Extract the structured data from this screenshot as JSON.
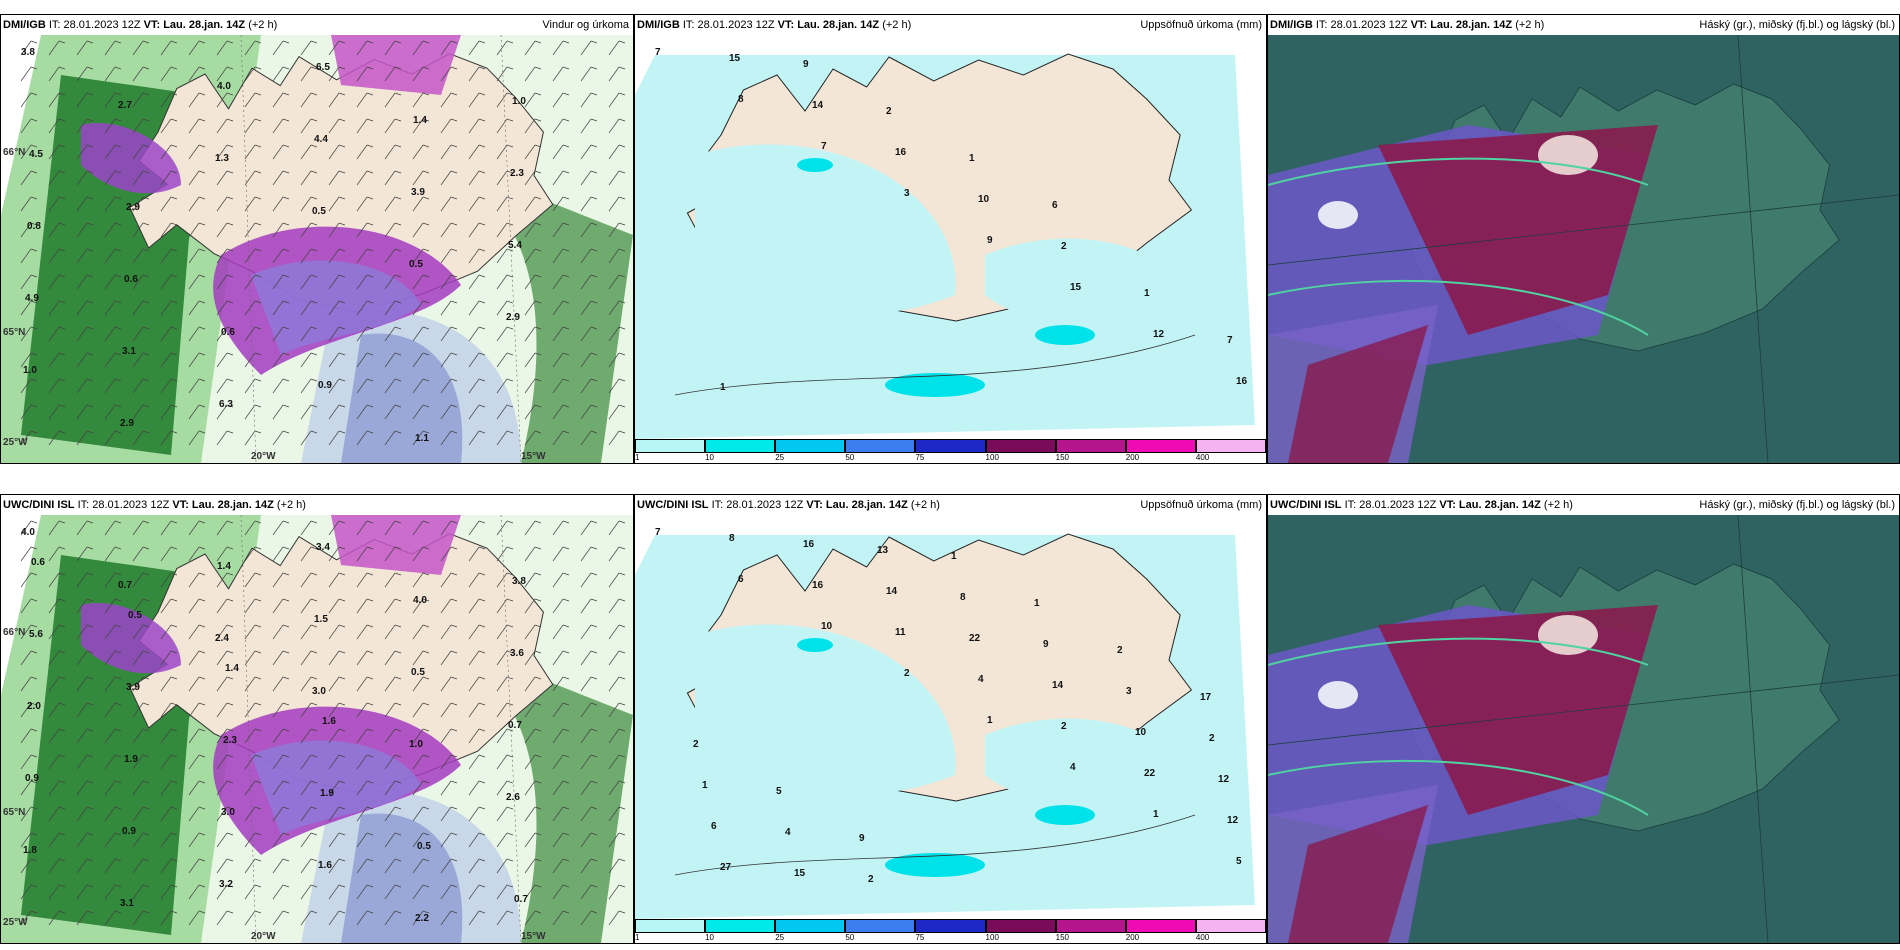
{
  "panels": [
    {
      "source": "DMI/IGB",
      "it": "IT: 28.01.2023 12Z",
      "vt_label": "VT:",
      "vt": "Lau. 28.jan. 14Z",
      "offset": "(+2 h)",
      "title": "Vindur og úrkoma"
    },
    {
      "source": "DMI/IGB",
      "it": "IT: 28.01.2023 12Z",
      "vt_label": "VT:",
      "vt": "Lau. 28.jan. 14Z",
      "offset": "(+2 h)",
      "title": "Uppsöfnuð úrkoma (mm)"
    },
    {
      "source": "DMI/IGB",
      "it": "IT: 28.01.2023 12Z",
      "vt_label": "VT:",
      "vt": "Lau. 28.jan. 14Z",
      "offset": "(+2 h)",
      "title": "Háský (gr.), miðský (fj.bl.) og lágský (bl.)"
    },
    {
      "source": "UWC/DINI ISL",
      "it": "IT: 28.01.2023 12Z",
      "vt_label": "VT:",
      "vt": "Lau. 28.jan. 14Z",
      "offset": "(+2 h)",
      "title": "Vindur og úrkoma"
    },
    {
      "source": "UWC/DINI ISL",
      "it": "IT: 28.01.2023 12Z",
      "vt_label": "VT:",
      "vt": "Lau. 28.jan. 14Z",
      "offset": "(+2 h)",
      "title": "Uppsöfnuð úrkoma (mm)"
    },
    {
      "source": "UWC/DINI ISL",
      "it": "IT: 28.01.2023 12Z",
      "vt_label": "VT:",
      "vt": "Lau. 28.jan. 14Z",
      "offset": "(+2 h)",
      "title": "Háský (gr.), miðský (fj.bl.) og lágský (bl.)"
    }
  ],
  "colorbar": {
    "ticks": [
      "1",
      "10",
      "25",
      "50",
      "75",
      "100",
      "150",
      "200",
      "400"
    ],
    "colors": [
      "#b8f6f6",
      "#00eaea",
      "#00c8f0",
      "#3a7ef0",
      "#1e28c8",
      "#7a0a5a",
      "#b4148c",
      "#f00ab4",
      "#f5b4f0"
    ]
  },
  "precip_labels_top": [
    "7",
    "8",
    "7",
    "3",
    "9",
    "15",
    "12",
    "16",
    "15",
    "14",
    "16",
    "10",
    "2",
    "1",
    "7",
    "1",
    "9",
    "2",
    "1",
    "6"
  ],
  "precip_labels_bottom": [
    "7",
    "6",
    "10",
    "2",
    "1",
    "4",
    "1",
    "5",
    "8",
    "16",
    "11",
    "4",
    "2",
    "22",
    "12",
    "27",
    "16",
    "14",
    "22",
    "14",
    "10",
    "12",
    "6",
    "15",
    "13",
    "8",
    "9",
    "3",
    "2",
    "1",
    "4",
    "2",
    "1",
    "1",
    "2",
    "17",
    "2",
    "5",
    "9"
  ],
  "wind_labels_top": [
    "3.8",
    "2.7",
    "1.3",
    "0.5",
    "0.5",
    "2.9",
    "1.0",
    "2.9",
    "4.0",
    "4.4",
    "3.9",
    "5.4",
    "4.9",
    "3.1",
    "6.3",
    "6.5",
    "1.4",
    "2.3",
    "0.8",
    "0.6",
    "0.6",
    "0.9",
    "1.1",
    "1.0",
    "4.5",
    "2.9"
  ],
  "wind_labels_bottom": [
    "4.0",
    "0.7",
    "2.4",
    "3.0",
    "1.0",
    "2.6",
    "1.8",
    "3.1",
    "1.4",
    "1.5",
    "0.5",
    "0.7",
    "0.9",
    "0.9",
    "3.2",
    "3.4",
    "4.0",
    "3.6",
    "2.0",
    "1.9",
    "3.0",
    "1.6",
    "2.2",
    "3.8",
    "5.6",
    "3.9",
    "2.3",
    "1.9",
    "0.5",
    "0.7",
    "0.6",
    "0.5",
    "1.4",
    "1.6"
  ],
  "axis_labels": {
    "lat1": "66°N",
    "lat2": "65°N",
    "lon1": "20°W",
    "lon2": "15°W",
    "lon3": "25°W"
  }
}
